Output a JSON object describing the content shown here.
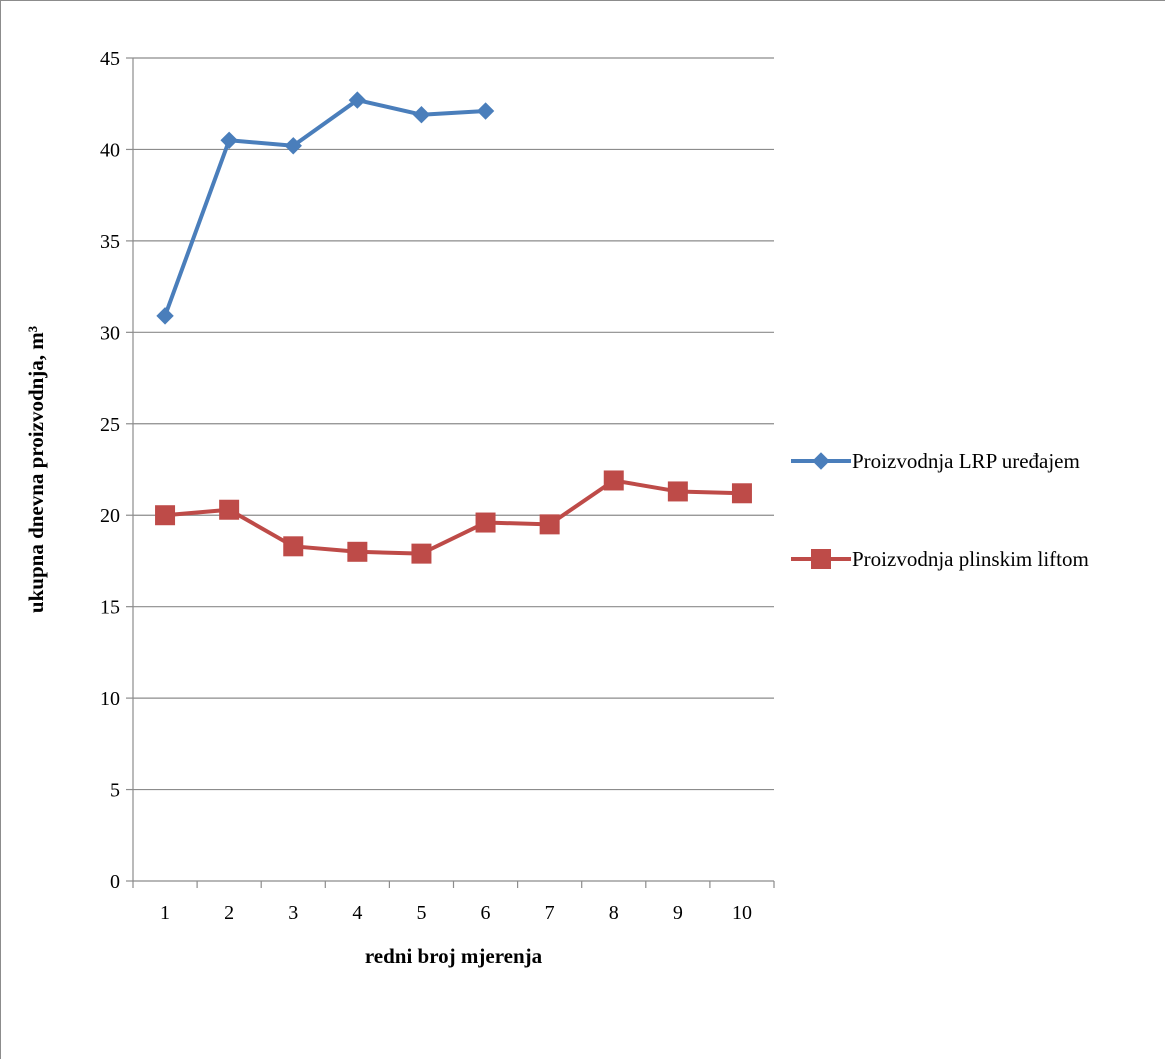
{
  "chart_data": {
    "type": "line",
    "title": "",
    "xlabel": "redni broj mjerenja",
    "ylabel": "ukupna dnevna proizvodnja, m³",
    "categories": [
      "1",
      "2",
      "3",
      "4",
      "5",
      "6",
      "7",
      "8",
      "9",
      "10"
    ],
    "ylim": [
      0,
      45
    ],
    "yticks": [
      "0",
      "5",
      "10",
      "15",
      "20",
      "25",
      "30",
      "35",
      "40",
      "45"
    ],
    "grid": "horizontal",
    "legend_position": "right",
    "series": [
      {
        "name": "Proizvodnja LRP uređajem",
        "color": "#4a7ebb",
        "marker": "diamond",
        "values": [
          30.9,
          40.5,
          40.2,
          42.7,
          41.9,
          42.1,
          null,
          null,
          null,
          null
        ]
      },
      {
        "name": "Proizvodnja plinskim liftom",
        "color": "#be4b48",
        "marker": "square",
        "values": [
          20.0,
          20.3,
          18.3,
          18.0,
          17.9,
          19.6,
          19.5,
          21.9,
          21.3,
          21.2
        ]
      }
    ]
  }
}
